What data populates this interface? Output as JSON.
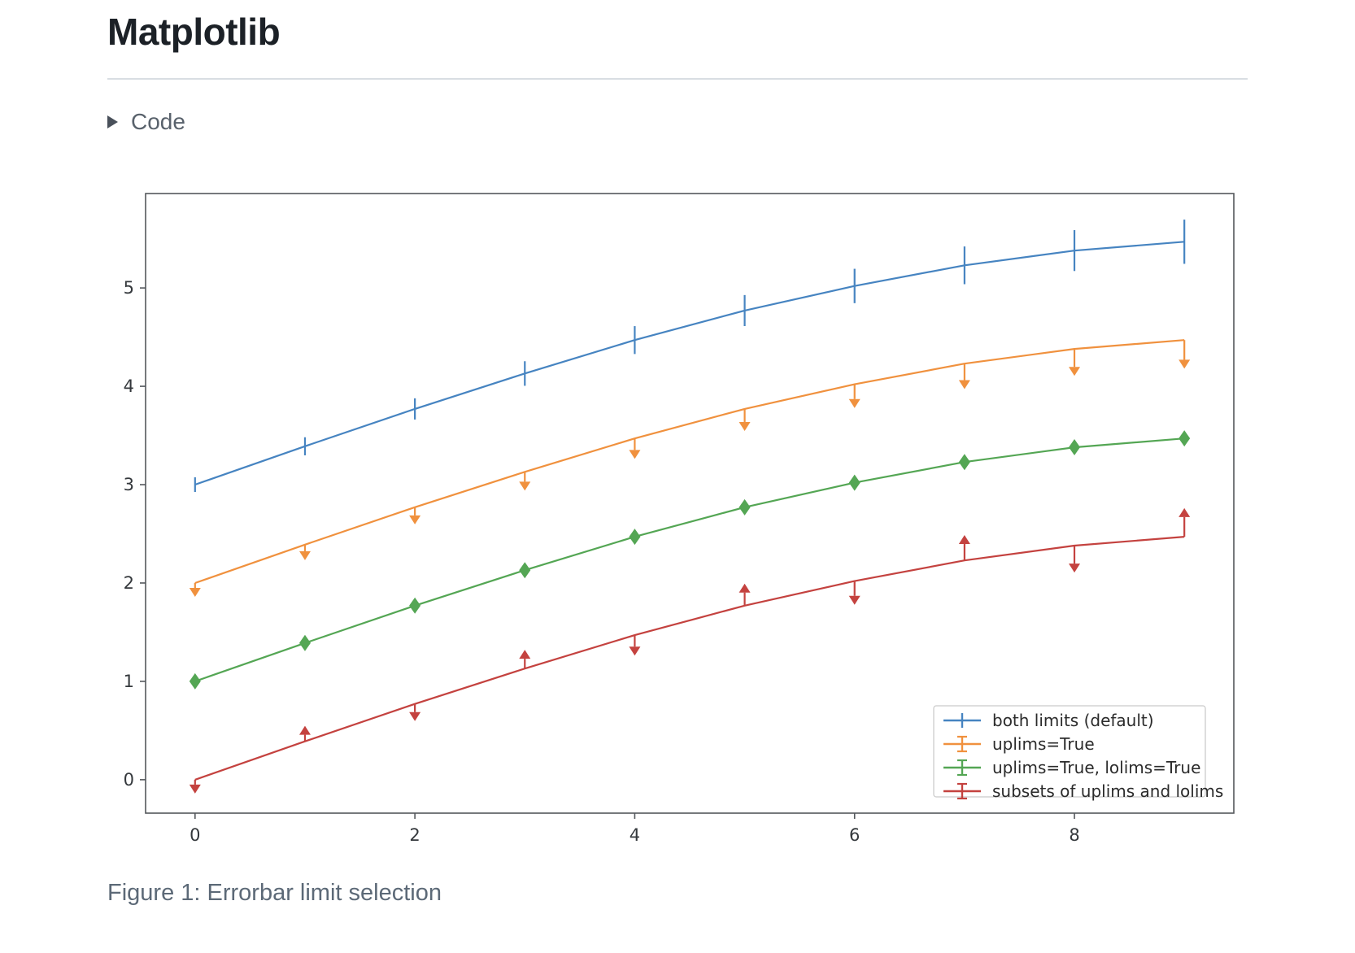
{
  "page": {
    "title": "Matplotlib",
    "code_toggle_label": "Code",
    "caption": "Figure 1: Errorbar limit selection"
  },
  "chart_data": {
    "type": "line",
    "title": "",
    "xlabel": "",
    "ylabel": "",
    "x": [
      0,
      1,
      2,
      3,
      4,
      5,
      6,
      7,
      8,
      9
    ],
    "xticks": [
      0,
      2,
      4,
      6,
      8
    ],
    "yticks": [
      0,
      1,
      2,
      3,
      4,
      5
    ],
    "xlim": [
      -0.45,
      9.45
    ],
    "ylim": [
      -0.34,
      5.96
    ],
    "grid": false,
    "legend_position": "lower right",
    "yerr": [
      0.05,
      0.067,
      0.083,
      0.1,
      0.117,
      0.133,
      0.15,
      0.167,
      0.183,
      0.2
    ],
    "series": [
      {
        "name": "both limits (default)",
        "color": "#4684c1",
        "errorbar_style": "plain",
        "values": [
          3.0,
          3.39,
          3.77,
          4.13,
          4.47,
          4.77,
          5.02,
          5.23,
          5.38,
          5.47
        ]
      },
      {
        "name": "uplims=True",
        "color": "#f0913e",
        "errorbar_style": "uplims",
        "values": [
          2.0,
          2.39,
          2.77,
          3.13,
          3.47,
          3.77,
          4.02,
          4.23,
          4.38,
          4.47
        ]
      },
      {
        "name": "uplims=True, lolims=True",
        "color": "#54a654",
        "errorbar_style": "uplims_lolims",
        "values": [
          1.0,
          1.39,
          1.77,
          2.13,
          2.47,
          2.77,
          3.02,
          3.23,
          3.38,
          3.47
        ]
      },
      {
        "name": "subsets of uplims and lolims",
        "color": "#c4423f",
        "errorbar_style": "alternating",
        "uplims": [
          true,
          false,
          true,
          false,
          true,
          false,
          true,
          false,
          true,
          false
        ],
        "lolims": [
          false,
          true,
          false,
          true,
          false,
          true,
          false,
          true,
          false,
          true
        ],
        "values": [
          0.0,
          0.39,
          0.77,
          1.13,
          1.47,
          1.77,
          2.02,
          2.23,
          2.38,
          2.47
        ]
      }
    ],
    "axis_color": "#54585c",
    "tick_label_color": "#34383c",
    "legend_text_color": "#2b2b2b",
    "legend_border_color": "#c9c9c9"
  }
}
